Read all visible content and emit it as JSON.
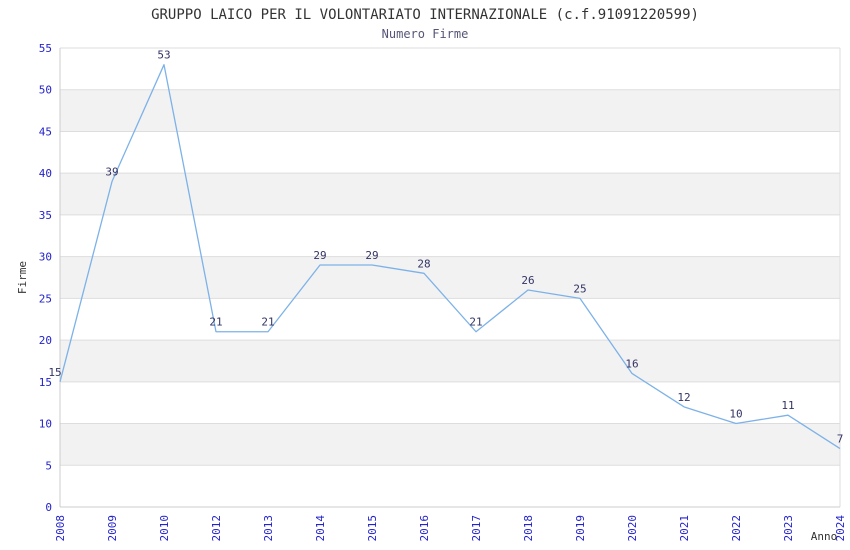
{
  "chart_data": {
    "type": "line",
    "title": "GRUPPO LAICO PER IL VOLONTARIATO INTERNAZIONALE (c.f.91091220599)",
    "subtitle": "Numero Firme",
    "xlabel": "Anno",
    "ylabel": "Firme",
    "categories": [
      "2008",
      "2009",
      "2010",
      "2012",
      "2013",
      "2014",
      "2015",
      "2016",
      "2017",
      "2018",
      "2019",
      "2020",
      "2021",
      "2022",
      "2023",
      "2024"
    ],
    "values": [
      15,
      39,
      53,
      21,
      21,
      29,
      29,
      28,
      21,
      26,
      25,
      16,
      12,
      10,
      11,
      7
    ],
    "ylim": [
      0,
      55
    ],
    "ytick_step": 5,
    "grid": true,
    "legend": "none",
    "band_alternating": true,
    "colors": {
      "line": "#7db2e8",
      "band_fill": "#f2f2f2",
      "gridline": "#dddddd",
      "axis_line": "#cccccc",
      "tick_label": "#2323cc",
      "point_label": "#333366",
      "axis_title": "#333333",
      "chart_title": "#333333",
      "subtitle": "#555577",
      "background": "#ffffff"
    }
  }
}
